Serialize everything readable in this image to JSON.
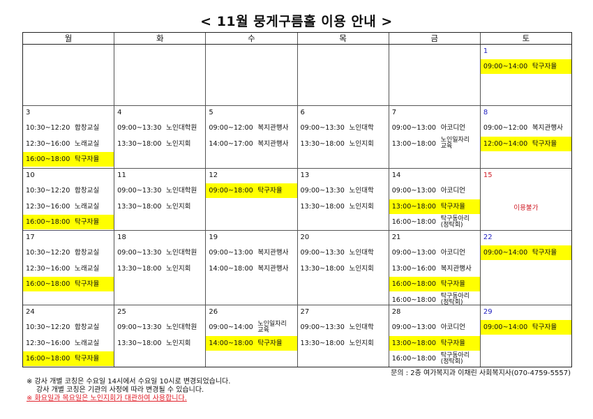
{
  "title": "< 11월 뭉게구름홀 이용 안내 >",
  "weekdays": [
    "월",
    "화",
    "수",
    "목",
    "금",
    "토"
  ],
  "colors": {
    "highlight": "#ffff00",
    "saturday": "#2020c0",
    "holiday": "#d0202a"
  },
  "weeks": [
    [
      {
        "date": ""
      },
      {
        "date": ""
      },
      {
        "date": ""
      },
      {
        "date": ""
      },
      {
        "date": ""
      },
      {
        "date": "1",
        "color": "saturday",
        "entries": [
          {
            "time": "09:00~14:00",
            "label": "탁구자율",
            "hl": true
          }
        ]
      }
    ],
    [
      {
        "date": "3",
        "entries": [
          {
            "time": "10:30~12:20",
            "label": "합창교실"
          },
          {
            "time": "12:30~16:00",
            "label": "노래교실"
          },
          {
            "time": "16:00~18:00",
            "label": "탁구자율",
            "hl": true
          }
        ]
      },
      {
        "date": "4",
        "entries": [
          {
            "time": "09:00~13:30",
            "label": "노인대학원"
          },
          {
            "time": "13:30~18:00",
            "label": "노인지회"
          }
        ]
      },
      {
        "date": "5",
        "entries": [
          {
            "time": "09:00~12:00",
            "label": "복지관행사"
          },
          {
            "time": "14:00~17:00",
            "label": "복지관행사"
          }
        ]
      },
      {
        "date": "6",
        "entries": [
          {
            "time": "09:00~13:30",
            "label": "노인대학"
          },
          {
            "time": "13:30~18:00",
            "label": "노인지회"
          }
        ]
      },
      {
        "date": "7",
        "entries": [
          {
            "time": "09:00~13:00",
            "label": "아코디언"
          },
          {
            "time": "13:00~18:00",
            "label": "노인일자리 교육",
            "two": true
          }
        ]
      },
      {
        "date": "8",
        "color": "saturday",
        "entries": [
          {
            "time": "09:00~12:00",
            "label": "복지관행사"
          },
          {
            "time": "12:00~14:00",
            "label": "탁구자율",
            "hl": true
          }
        ]
      }
    ],
    [
      {
        "date": "10",
        "entries": [
          {
            "time": "10:30~12:20",
            "label": "합창교실"
          },
          {
            "time": "12:30~16:00",
            "label": "노래교실"
          },
          {
            "time": "16:00~18:00",
            "label": "탁구자율",
            "hl": true
          }
        ]
      },
      {
        "date": "11",
        "entries": [
          {
            "time": "09:00~13:30",
            "label": "노인대학원"
          },
          {
            "time": "13:30~18:00",
            "label": "노인지회"
          }
        ]
      },
      {
        "date": "12",
        "entries": [
          {
            "time": "09:00~18:00",
            "label": "탁구자율",
            "hl": true
          }
        ]
      },
      {
        "date": "13",
        "entries": [
          {
            "time": "09:00~13:30",
            "label": "노인대학"
          },
          {
            "time": "13:30~18:00",
            "label": "노인지회"
          }
        ]
      },
      {
        "date": "14",
        "entries": [
          {
            "time": "09:00~13:00",
            "label": "아코디언"
          },
          {
            "time": "13:00~18:00",
            "label": "탁구자율",
            "hl": true
          },
          {
            "time": "16:00~18:00",
            "label": "탁구동아리 (정탁회)",
            "two": true
          }
        ]
      },
      {
        "date": "15",
        "color": "holiday",
        "note": "이용불가"
      }
    ],
    [
      {
        "date": "17",
        "entries": [
          {
            "time": "10:30~12:20",
            "label": "합창교실"
          },
          {
            "time": "12:30~16:00",
            "label": "노래교실"
          },
          {
            "time": "16:00~18:00",
            "label": "탁구자율",
            "hl": true
          }
        ]
      },
      {
        "date": "18",
        "entries": [
          {
            "time": "09:00~13:30",
            "label": "노인대학원"
          },
          {
            "time": "13:30~18:00",
            "label": "노인지회"
          }
        ]
      },
      {
        "date": "19",
        "entries": [
          {
            "time": "09:00~13:00",
            "label": "복지관행사"
          },
          {
            "time": "14:00~18:00",
            "label": "복지관행사"
          }
        ]
      },
      {
        "date": "20",
        "entries": [
          {
            "time": "09:00~13:30",
            "label": "노인대학"
          },
          {
            "time": "13:30~18:00",
            "label": "노인지회"
          }
        ]
      },
      {
        "date": "21",
        "entries": [
          {
            "time": "09:00~13:00",
            "label": "아코디언"
          },
          {
            "time": "13:00~16:00",
            "label": "복지관행사"
          },
          {
            "time": "16:00~18:00",
            "label": "탁구자율",
            "hl": true
          },
          {
            "time": "16:00~18:00",
            "label": "탁구동아리 (정탁회)",
            "two": true
          }
        ]
      },
      {
        "date": "22",
        "color": "saturday",
        "entries": [
          {
            "time": "09:00~14:00",
            "label": "탁구자율",
            "hl": true
          }
        ]
      }
    ],
    [
      {
        "date": "24",
        "entries": [
          {
            "time": "10:30~12:20",
            "label": "합창교실"
          },
          {
            "time": "12:30~16:00",
            "label": "노래교실"
          },
          {
            "time": "16:00~18:00",
            "label": "탁구자율",
            "hl": true
          }
        ]
      },
      {
        "date": "25",
        "entries": [
          {
            "time": "09:00~13:30",
            "label": "노인대학원"
          },
          {
            "time": "13:30~18:00",
            "label": "노인지회"
          }
        ]
      },
      {
        "date": "26",
        "entries": [
          {
            "time": "09:00~14:00",
            "label": "노인일자리 교육",
            "two": true
          },
          {
            "time": "14:00~18:00",
            "label": "탁구자율",
            "hl": true
          }
        ]
      },
      {
        "date": "27",
        "entries": [
          {
            "time": "09:00~13:30",
            "label": "노인대학"
          },
          {
            "time": "13:30~18:00",
            "label": "노인지회"
          }
        ]
      },
      {
        "date": "28",
        "entries": [
          {
            "time": "09:00~13:00",
            "label": "아코디언"
          },
          {
            "time": "13:00~18:00",
            "label": "탁구자율",
            "hl": true
          },
          {
            "time": "16:00~18:00",
            "label": "탁구동아리 (정탁회)",
            "two": true
          }
        ]
      },
      {
        "date": "29",
        "color": "saturday",
        "entries": [
          {
            "time": "09:00~14:00",
            "label": "탁구자율",
            "hl": true
          }
        ]
      }
    ]
  ],
  "contact": "문의 : 2층 여가복지과 이채린 사회복지사(070-4759-5557)",
  "notes": [
    "※ 강사 개별 코칭은 수요일 14시에서 수요일 10시로 변경되었습니다.",
    "강사 개별 코칭은 기관의 사정에 따라 변경될 수 있습니다.",
    "※ 화요일과 목요일은 노인지회가 대관하여 사용합니다."
  ]
}
